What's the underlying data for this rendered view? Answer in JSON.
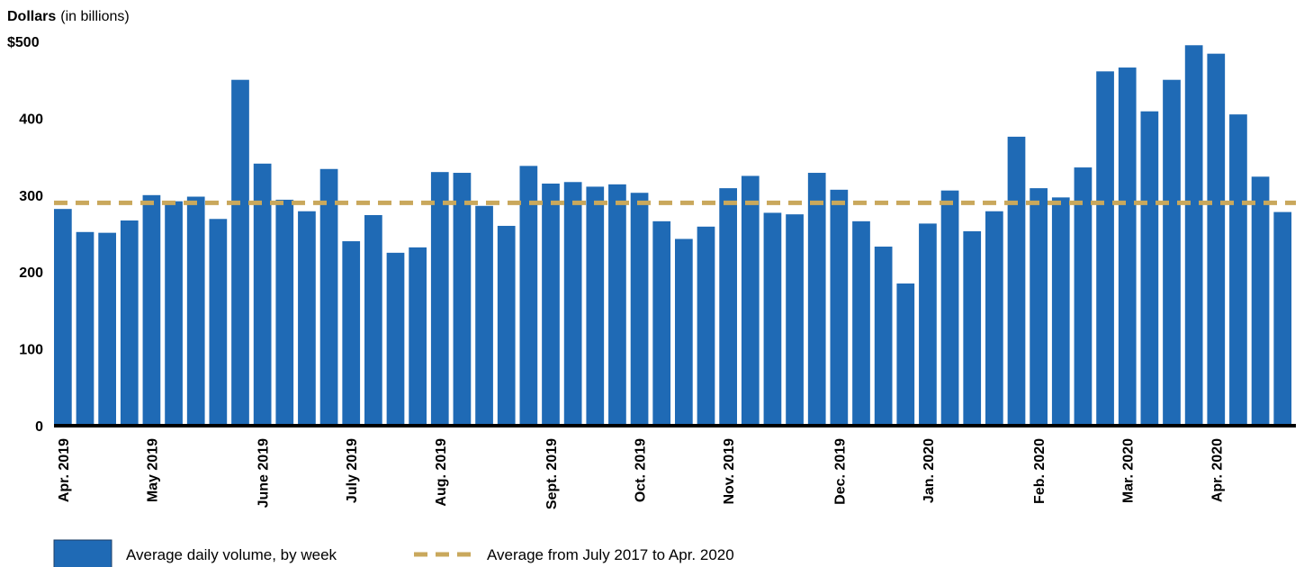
{
  "chart_data": {
    "type": "bar",
    "ylabel_bold": "Dollars",
    "ylabel_rest": "(in billions)",
    "ylim": [
      0,
      500
    ],
    "yticks": [
      0,
      100,
      200,
      300,
      400,
      500
    ],
    "ytick_labels": [
      "0",
      "100",
      "200",
      "300",
      "400",
      "$500"
    ],
    "grid": false,
    "legend_placement": "bottom-left",
    "colors": {
      "bar": "#1f6ab5",
      "avg_line": "#c9a85c",
      "axis": "#000000"
    },
    "series": [
      {
        "name": "Average daily volume, by week",
        "values": [
          282,
          252,
          251,
          267,
          300,
          292,
          298,
          269,
          450,
          341,
          294,
          279,
          334,
          240,
          274,
          225,
          232,
          330,
          329,
          286,
          260,
          338,
          315,
          317,
          311,
          314,
          303,
          266,
          243,
          259,
          309,
          325,
          277,
          275,
          329,
          307,
          266,
          233,
          185,
          263,
          306,
          253,
          279,
          376,
          309,
          297,
          336,
          461,
          466,
          409,
          450,
          495,
          484,
          405,
          324,
          278
        ]
      }
    ],
    "reference_line": {
      "name": "Average from July 2017 to Apr. 2020",
      "value": 290
    },
    "month_labels": [
      {
        "label": "Apr. 2019",
        "bar_index": 0
      },
      {
        "label": "May 2019",
        "bar_index": 4
      },
      {
        "label": "June 2019",
        "bar_index": 9
      },
      {
        "label": "July 2019",
        "bar_index": 13
      },
      {
        "label": "Aug. 2019",
        "bar_index": 17
      },
      {
        "label": "Sept. 2019",
        "bar_index": 22
      },
      {
        "label": "Oct. 2019",
        "bar_index": 26
      },
      {
        "label": "Nov. 2019",
        "bar_index": 30
      },
      {
        "label": "Dec. 2019",
        "bar_index": 35
      },
      {
        "label": "Jan. 2020",
        "bar_index": 39
      },
      {
        "label": "Feb. 2020",
        "bar_index": 44
      },
      {
        "label": "Mar. 2020",
        "bar_index": 48
      },
      {
        "label": "Apr. 2020",
        "bar_index": 52
      }
    ]
  }
}
